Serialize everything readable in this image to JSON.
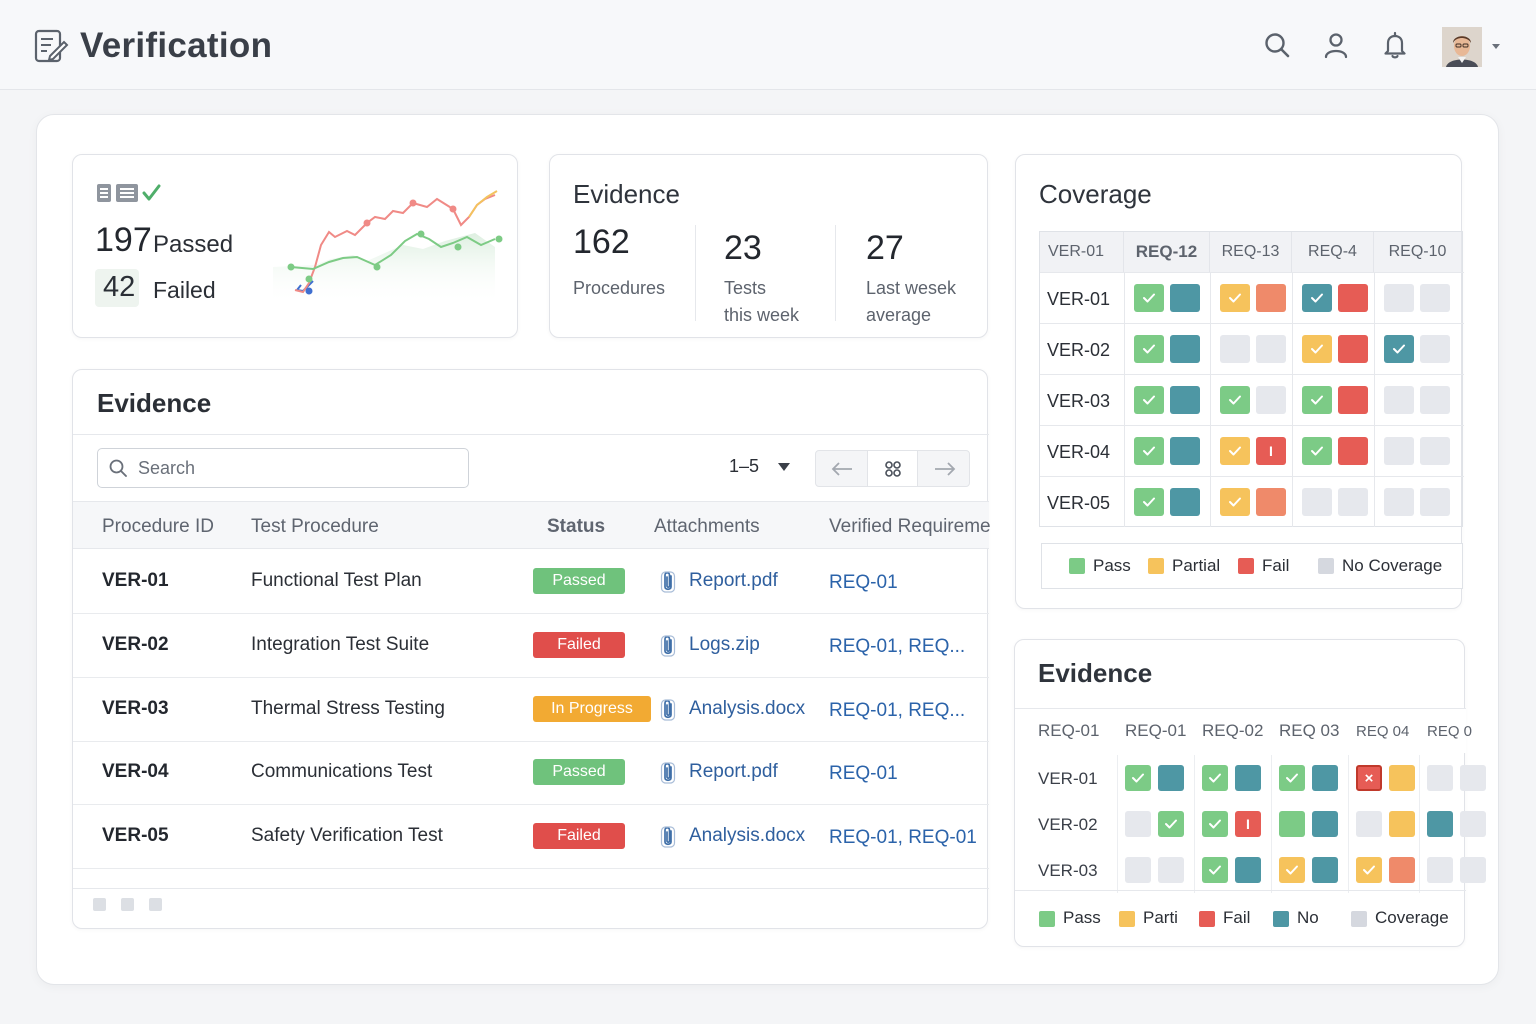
{
  "header": {
    "title": "Verification",
    "icons": [
      "notes-icon",
      "search-icon",
      "user-icon",
      "bell-icon",
      "avatar",
      "chevron-down-icon"
    ]
  },
  "summary": {
    "passed_count": "197",
    "passed_label": "Passed",
    "failed_count": "42",
    "failed_label": "Failed"
  },
  "stats": {
    "title": "Evidence",
    "items": [
      {
        "value": "162",
        "label1": "Procedures",
        "label2": ""
      },
      {
        "value": "23",
        "label1": "Tests",
        "label2": "this week"
      },
      {
        "value": "27",
        "label1": "Last wesek",
        "label2": "average"
      }
    ]
  },
  "evidence_table": {
    "title": "Evidence",
    "search_placeholder": "Search",
    "pager_range": "1–5",
    "columns": [
      "Procedure ID",
      "Test Procedure",
      "Status",
      "Attachments",
      "Verified Requireme"
    ],
    "rows": [
      {
        "id": "VER-01",
        "procedure": "Functional Test Plan",
        "status": "Passed",
        "attachment": "Report.pdf",
        "requirements": "REQ-01"
      },
      {
        "id": "VER-02",
        "procedure": "Integration Test Suite",
        "status": "Failed",
        "attachment": "Logs.zip",
        "requirements": "REQ-01, REQ..."
      },
      {
        "id": "VER-03",
        "procedure": "Thermal Stress Testing",
        "status": "In Progress",
        "attachment": "Analysis.docx",
        "requirements": "REQ-01, REQ..."
      },
      {
        "id": "VER-04",
        "procedure": "Communications Test",
        "status": "Passed",
        "attachment": "Report.pdf",
        "requirements": "REQ-01"
      },
      {
        "id": "VER-05",
        "procedure": "Safety Verification Test",
        "status": "Failed",
        "attachment": "Analysis.docx",
        "requirements": "REQ-01, REQ-01"
      }
    ]
  },
  "coverage": {
    "title": "Coverage",
    "corner": "VER-01",
    "columns": [
      "REQ-12",
      "REQ-13",
      "REQ-4",
      "REQ-10"
    ],
    "rows": [
      {
        "label": "VER-01",
        "cells": [
          [
            "pass-check",
            "teal"
          ],
          [
            "partial-check",
            "fail-light"
          ],
          [
            "teal-check",
            "fail"
          ],
          [
            "none",
            "none"
          ]
        ]
      },
      {
        "label": "VER-02",
        "cells": [
          [
            "pass-check",
            "teal"
          ],
          [
            "none",
            "none"
          ],
          [
            "partial-check",
            "fail"
          ],
          [
            "teal-check",
            "none"
          ]
        ]
      },
      {
        "label": "VER-03",
        "cells": [
          [
            "pass-check",
            "teal"
          ],
          [
            "pass-check",
            "none"
          ],
          [
            "pass-check",
            "fail"
          ],
          [
            "none",
            "none"
          ]
        ]
      },
      {
        "label": "VER-04",
        "cells": [
          [
            "pass-check",
            "teal"
          ],
          [
            "partial-check",
            "fail-mark"
          ],
          [
            "pass-check",
            "fail"
          ],
          [
            "none",
            "none"
          ]
        ]
      },
      {
        "label": "VER-05",
        "cells": [
          [
            "pass-check",
            "teal"
          ],
          [
            "partial-check",
            "fail-light"
          ],
          [
            "none",
            "none"
          ],
          [
            "none",
            "none"
          ]
        ]
      }
    ],
    "fail_mark": "I",
    "legend": [
      "Pass",
      "Partial",
      "Fail",
      "No Coverage"
    ]
  },
  "evidence_grid": {
    "title": "Evidence",
    "corner": "REQ-01",
    "columns": [
      "REQ-01",
      "REQ-02",
      "REQ 03",
      "REQ 04",
      "REQ 0"
    ],
    "rows": [
      {
        "label": "VER-01",
        "cells": [
          [
            "pass-check",
            "teal"
          ],
          [
            "pass-check",
            "teal"
          ],
          [
            "pass-check",
            "teal"
          ],
          [
            "fail-x",
            "partial"
          ],
          [
            "none",
            "none"
          ]
        ]
      },
      {
        "label": "VER-02",
        "cells": [
          [
            "none",
            "pass-check"
          ],
          [
            "pass-check",
            "fail-mark"
          ],
          [
            "pass",
            "teal"
          ],
          [
            "none",
            "partial"
          ],
          [
            "teal",
            "none"
          ]
        ]
      },
      {
        "label": "VER-03",
        "cells": [
          [
            "none",
            "none"
          ],
          [
            "pass-check",
            "teal"
          ],
          [
            "partial-check",
            "teal"
          ],
          [
            "partial-check",
            "fail-light"
          ],
          [
            "none",
            "none"
          ]
        ]
      }
    ],
    "fail_mark": "I",
    "fail_x": "×",
    "legend": [
      "Pass",
      "Parti",
      "Fail",
      "No",
      "Coverage"
    ]
  },
  "colors": {
    "pass": "#7ccb86",
    "partial": "#f6c35c",
    "fail": "#e65c55",
    "fail_light": "#ef8a6a",
    "teal": "#4e97a4",
    "none": "#e6e8ed",
    "badge_passed": "#6fc27c",
    "badge_failed": "#e04e4b",
    "badge_progress": "#f2aa33",
    "link": "#2b63aa"
  }
}
